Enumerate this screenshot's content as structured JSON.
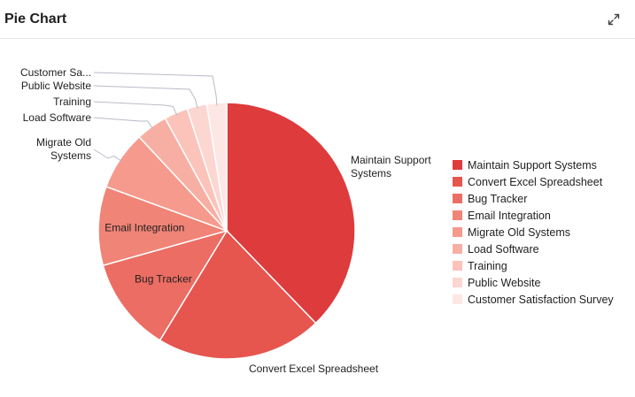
{
  "header": {
    "title": "Pie Chart",
    "expand_icon": "expand-icon"
  },
  "chart_data": {
    "type": "pie",
    "title": "Pie Chart",
    "legend_position": "right",
    "start_angle": "top",
    "direction": "clockwise",
    "slices": [
      {
        "label": "Maintain Support Systems",
        "display_label": [
          "Maintain Support",
          "Systems"
        ],
        "value": 38,
        "color": "#de3b3d"
      },
      {
        "label": "Convert Excel Spreadsheet",
        "display_label": [
          "Convert Excel Spreadsheet"
        ],
        "value": 21,
        "color": "#e6554e"
      },
      {
        "label": "Bug Tracker",
        "display_label": [
          "Bug Tracker"
        ],
        "value": 12,
        "color": "#ec6d63"
      },
      {
        "label": "Email Integration",
        "display_label": [
          "Email Integration"
        ],
        "value": 10,
        "color": "#f08477"
      },
      {
        "label": "Migrate Old Systems",
        "display_label": [
          "Migrate Old",
          "Systems"
        ],
        "value": 7.5,
        "color": "#f59a8d"
      },
      {
        "label": "Load Software",
        "display_label": [
          "Load Software"
        ],
        "value": 4,
        "color": "#f8afa3"
      },
      {
        "label": "Training",
        "display_label": [
          "Training"
        ],
        "value": 3,
        "color": "#fbc3ba"
      },
      {
        "label": "Public Website",
        "display_label": [
          "Public Website"
        ],
        "value": 2.5,
        "color": "#fcd6d1"
      },
      {
        "label": "Customer Satisfaction Survey",
        "display_label": [
          "Customer Sa..."
        ],
        "value": 2.5,
        "color": "#fde7e4"
      }
    ]
  }
}
